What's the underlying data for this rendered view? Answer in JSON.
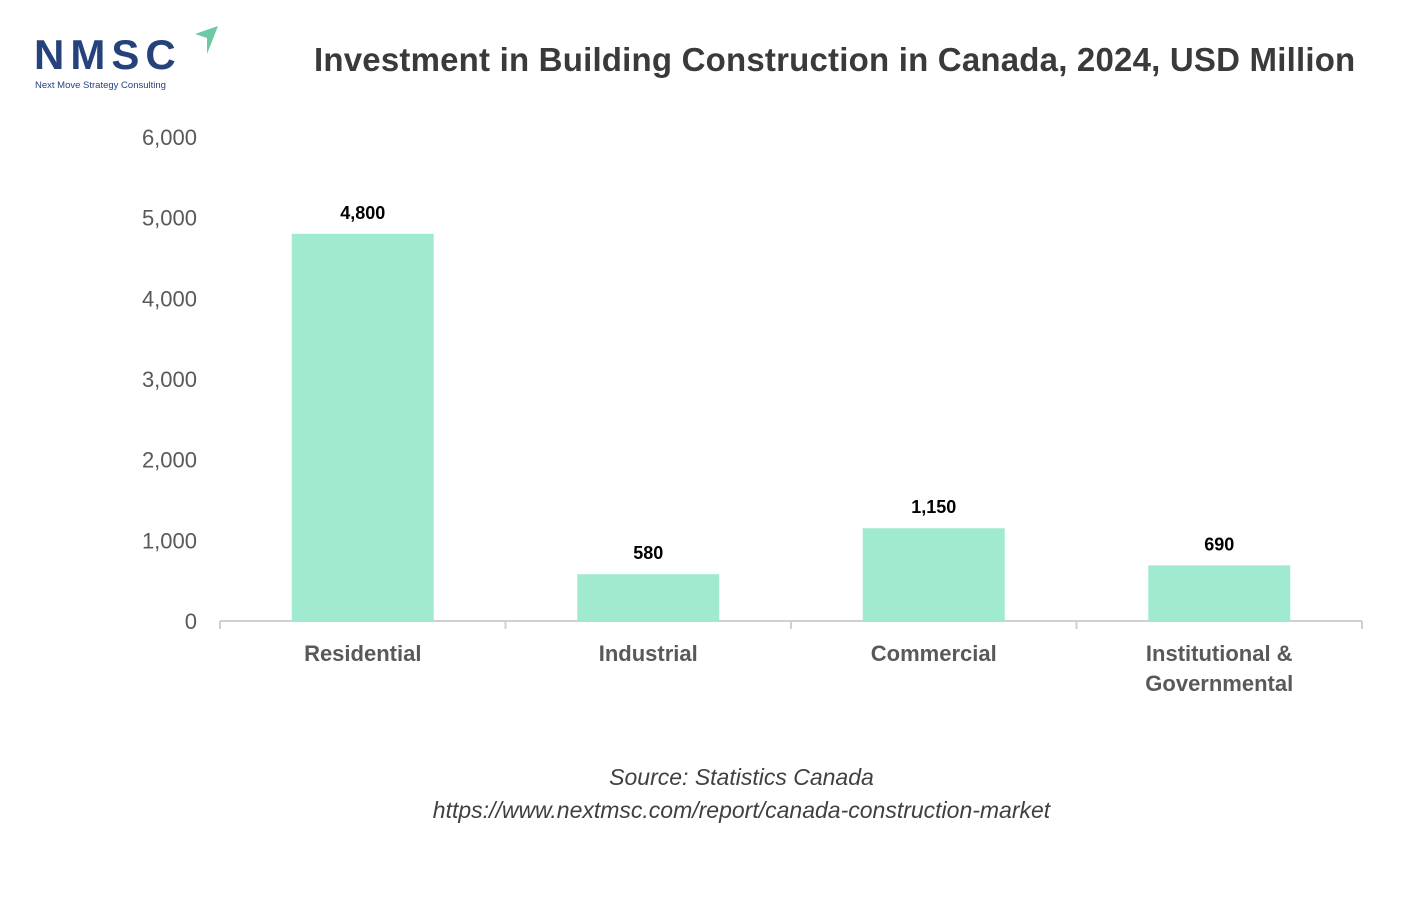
{
  "logo": {
    "text": "NMSC",
    "subtitle": "Next Move Strategy Consulting"
  },
  "chart_data": {
    "type": "bar",
    "title": "Investment in Building Construction in Canada, 2024, USD Million",
    "categories": [
      "Residential",
      "Industrial",
      "Commercial",
      "Institutional & Governmental"
    ],
    "category_lines": [
      [
        "Residential"
      ],
      [
        "Industrial"
      ],
      [
        "Commercial"
      ],
      [
        "Institutional &",
        "Governmental"
      ]
    ],
    "values": [
      4800,
      580,
      1150,
      690
    ],
    "data_labels": [
      "4,800",
      "580",
      "1,150",
      "690"
    ],
    "yticks": [
      0,
      1000,
      2000,
      3000,
      4000,
      5000,
      6000
    ],
    "ytick_labels": [
      "0",
      "1,000",
      "2,000",
      "3,000",
      "4,000",
      "5,000",
      "6,000"
    ],
    "ylim": [
      0,
      6000
    ],
    "xlabel": "",
    "ylabel": "",
    "grid": false,
    "bar_color": "#a0ebd0"
  },
  "source": {
    "line1": "Source: Statistics Canada",
    "line2": "https://www.nextmsc.com/report/canada-construction-market"
  }
}
